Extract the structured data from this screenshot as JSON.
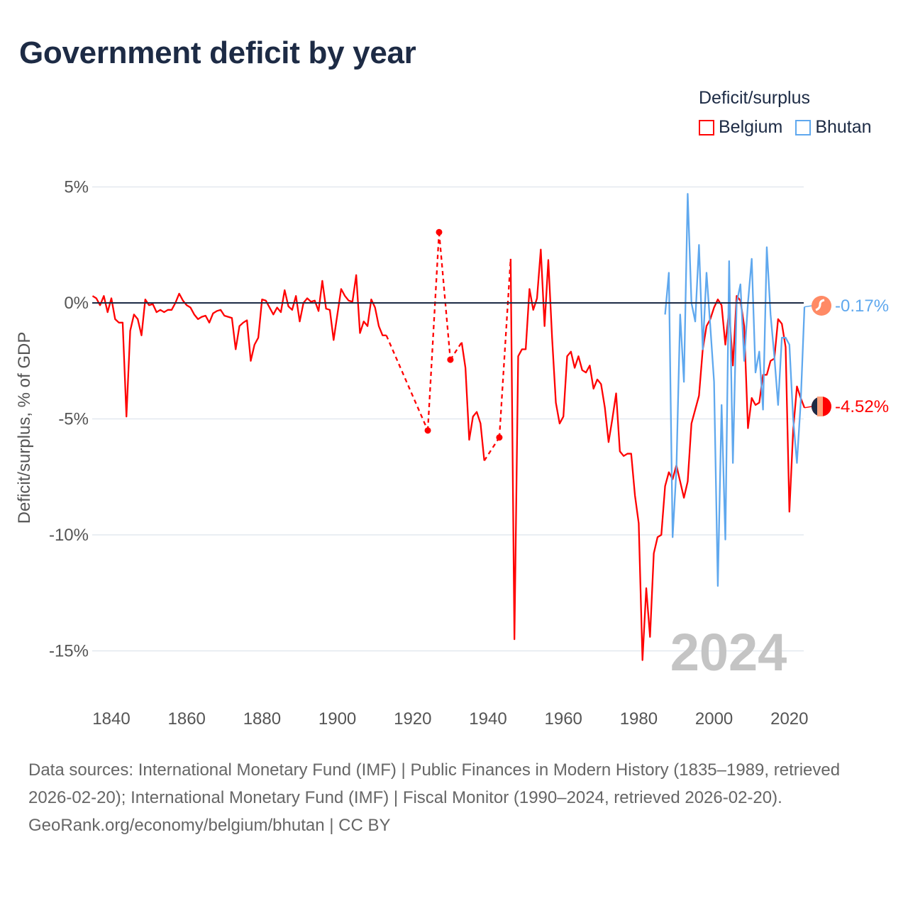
{
  "title": "Government deficit by year",
  "legend": {
    "title": "Deficit/surplus",
    "items": [
      {
        "name": "Belgium",
        "color": "#ff0000"
      },
      {
        "name": "Bhutan",
        "color": "#5fa8ee"
      }
    ]
  },
  "footer": {
    "sources": "Data sources: International Monetary Fund (IMF) | Public Finances in Modern History (1835–1989, retrieved 2026-02-20); International Monetary Fund (IMF) | Fiscal Monitor (1990–2024, retrieved 2026-02-20).",
    "credit": "GeoRank.org/economy/belgium/bhutan | CC BY"
  },
  "chart_data": {
    "type": "line",
    "title": "Government deficit by year",
    "xlabel": "",
    "ylabel": "Deficit/surplus, % of GDP",
    "xlim": [
      1835,
      2024
    ],
    "ylim": [
      -17,
      5.3
    ],
    "x_ticks": [
      1840,
      1860,
      1880,
      1900,
      1920,
      1940,
      1960,
      1980,
      2000,
      2020
    ],
    "y_ticks": [
      {
        "v": 5,
        "label": "5%"
      },
      {
        "v": 0,
        "label": "0%"
      },
      {
        "v": -5,
        "label": "-5%"
      },
      {
        "v": -10,
        "label": "-10%"
      },
      {
        "v": -15,
        "label": "-15%"
      }
    ],
    "year_watermark": "2024",
    "grid": true,
    "legend_position": "top-right",
    "series": [
      {
        "name": "Belgium",
        "color": "#ff0000",
        "end_label": "-4.52%",
        "points": [
          [
            1835,
            0.3
          ],
          [
            1836,
            0.2
          ],
          [
            1837,
            -0.1
          ],
          [
            1838,
            0.3
          ],
          [
            1839,
            -0.4
          ],
          [
            1840,
            0.2
          ],
          [
            1841,
            -0.7
          ],
          [
            1842,
            -0.85
          ],
          [
            1843,
            -0.85
          ],
          [
            1844,
            -4.9
          ],
          [
            1845,
            -1.2
          ],
          [
            1846,
            -0.5
          ],
          [
            1847,
            -0.7
          ],
          [
            1848,
            -1.4
          ],
          [
            1849,
            0.15
          ],
          [
            1850,
            -0.1
          ],
          [
            1851,
            -0.05
          ],
          [
            1852,
            -0.4
          ],
          [
            1853,
            -0.3
          ],
          [
            1854,
            -0.4
          ],
          [
            1855,
            -0.3
          ],
          [
            1856,
            -0.3
          ],
          [
            1857,
            0
          ],
          [
            1858,
            0.4
          ],
          [
            1859,
            0.1
          ],
          [
            1860,
            -0.1
          ],
          [
            1861,
            -0.2
          ],
          [
            1862,
            -0.5
          ],
          [
            1863,
            -0.7
          ],
          [
            1864,
            -0.6
          ],
          [
            1865,
            -0.55
          ],
          [
            1866,
            -0.85
          ],
          [
            1867,
            -0.45
          ],
          [
            1868,
            -0.35
          ],
          [
            1869,
            -0.3
          ],
          [
            1870,
            -0.55
          ],
          [
            1871,
            -0.6
          ],
          [
            1872,
            -0.65
          ],
          [
            1873,
            -2.0
          ],
          [
            1874,
            -1.0
          ],
          [
            1875,
            -0.85
          ],
          [
            1876,
            -0.75
          ],
          [
            1877,
            -2.5
          ],
          [
            1878,
            -1.8
          ],
          [
            1879,
            -1.5
          ],
          [
            1880,
            0.15
          ],
          [
            1881,
            0.1
          ],
          [
            1882,
            -0.2
          ],
          [
            1883,
            -0.5
          ],
          [
            1884,
            -0.2
          ],
          [
            1885,
            -0.4
          ],
          [
            1886,
            0.55
          ],
          [
            1887,
            -0.15
          ],
          [
            1888,
            -0.3
          ],
          [
            1889,
            0.3
          ],
          [
            1890,
            -0.8
          ],
          [
            1891,
            0.0
          ],
          [
            1892,
            0.2
          ],
          [
            1893,
            0.05
          ],
          [
            1894,
            0.1
          ],
          [
            1895,
            -0.35
          ],
          [
            1896,
            0.95
          ],
          [
            1897,
            -0.25
          ],
          [
            1898,
            -0.3
          ],
          [
            1899,
            -1.6
          ],
          [
            1900,
            -0.5
          ],
          [
            1901,
            0.6
          ],
          [
            1902,
            0.3
          ],
          [
            1903,
            0.1
          ],
          [
            1904,
            0.05
          ],
          [
            1905,
            1.2
          ],
          [
            1906,
            -1.3
          ],
          [
            1907,
            -0.8
          ],
          [
            1908,
            -1.0
          ],
          [
            1909,
            0.15
          ],
          [
            1910,
            -0.2
          ],
          [
            1911,
            -1.0
          ],
          [
            1912,
            -1.4
          ],
          [
            1913,
            -1.4
          ],
          [
            1924,
            -5.5
          ],
          [
            1927,
            3.05
          ],
          [
            1930,
            -2.45
          ],
          [
            1933,
            -1.7
          ],
          [
            1934,
            -2.8
          ],
          [
            1935,
            -5.9
          ],
          [
            1936,
            -4.9
          ],
          [
            1937,
            -4.7
          ],
          [
            1938,
            -5.2
          ],
          [
            1939,
            -6.8
          ],
          [
            1943,
            -5.8
          ],
          [
            1946,
            1.9
          ],
          [
            1947,
            -14.5
          ],
          [
            1948,
            -2.3
          ],
          [
            1949,
            -2.0
          ],
          [
            1950,
            -2.0
          ],
          [
            1951,
            0.6
          ],
          [
            1952,
            -0.3
          ],
          [
            1953,
            0.2
          ],
          [
            1954,
            2.3
          ],
          [
            1955,
            -1.0
          ],
          [
            1956,
            1.85
          ],
          [
            1957,
            -1.5
          ],
          [
            1958,
            -4.3
          ],
          [
            1959,
            -5.2
          ],
          [
            1960,
            -4.9
          ],
          [
            1961,
            -2.3
          ],
          [
            1962,
            -2.1
          ],
          [
            1963,
            -2.8
          ],
          [
            1964,
            -2.3
          ],
          [
            1965,
            -2.9
          ],
          [
            1966,
            -3.0
          ],
          [
            1967,
            -2.7
          ],
          [
            1968,
            -3.7
          ],
          [
            1969,
            -3.3
          ],
          [
            1970,
            -3.5
          ],
          [
            1971,
            -4.5
          ],
          [
            1972,
            -6.0
          ],
          [
            1973,
            -5.0
          ],
          [
            1974,
            -3.9
          ],
          [
            1975,
            -6.4
          ],
          [
            1976,
            -6.6
          ],
          [
            1977,
            -6.5
          ],
          [
            1978,
            -6.5
          ],
          [
            1979,
            -8.3
          ],
          [
            1980,
            -9.5
          ],
          [
            1981,
            -15.4
          ],
          [
            1982,
            -12.3
          ],
          [
            1983,
            -14.4
          ],
          [
            1984,
            -10.8
          ],
          [
            1985,
            -10.1
          ],
          [
            1986,
            -10.0
          ],
          [
            1987,
            -7.9
          ],
          [
            1988,
            -7.3
          ],
          [
            1989,
            -7.6
          ],
          [
            1990,
            -7.0
          ],
          [
            1991,
            -7.7
          ],
          [
            1992,
            -8.4
          ],
          [
            1993,
            -7.7
          ],
          [
            1994,
            -5.2
          ],
          [
            1995,
            -4.6
          ],
          [
            1996,
            -4.0
          ],
          [
            1997,
            -2.0
          ],
          [
            1998,
            -1.0
          ],
          [
            1999,
            -0.7
          ],
          [
            2000,
            -0.2
          ],
          [
            2001,
            0.15
          ],
          [
            2002,
            -0.1
          ],
          [
            2003,
            -1.8
          ],
          [
            2004,
            -0.3
          ],
          [
            2005,
            -2.7
          ],
          [
            2006,
            0.3
          ],
          [
            2007,
            0.1
          ],
          [
            2008,
            -1.0
          ],
          [
            2009,
            -5.4
          ],
          [
            2010,
            -4.1
          ],
          [
            2011,
            -4.4
          ],
          [
            2012,
            -4.3
          ],
          [
            2013,
            -3.1
          ],
          [
            2014,
            -3.1
          ],
          [
            2015,
            -2.5
          ],
          [
            2016,
            -2.4
          ],
          [
            2017,
            -0.7
          ],
          [
            2018,
            -0.9
          ],
          [
            2019,
            -1.9
          ],
          [
            2020,
            -9.0
          ],
          [
            2021,
            -5.5
          ],
          [
            2022,
            -3.6
          ],
          [
            2023,
            -4.1
          ],
          [
            2024,
            -4.52
          ]
        ]
      },
      {
        "name": "Bhutan",
        "color": "#5fa8ee",
        "end_label": "-0.17%",
        "points": [
          [
            1987,
            -0.5
          ],
          [
            1988,
            1.3
          ],
          [
            1989,
            -10.1
          ],
          [
            1990,
            -7.2
          ],
          [
            1991,
            -0.5
          ],
          [
            1992,
            -3.4
          ],
          [
            1993,
            4.7
          ],
          [
            1994,
            0
          ],
          [
            1995,
            -0.8
          ],
          [
            1996,
            2.5
          ],
          [
            1997,
            -2.0
          ],
          [
            1998,
            1.3
          ],
          [
            1999,
            -1.0
          ],
          [
            2000,
            -3.4
          ],
          [
            2001,
            -12.2
          ],
          [
            2002,
            -4.4
          ],
          [
            2003,
            -10.2
          ],
          [
            2004,
            1.8
          ],
          [
            2005,
            -6.9
          ],
          [
            2006,
            0
          ],
          [
            2007,
            0.8
          ],
          [
            2008,
            -2.5
          ],
          [
            2009,
            0
          ],
          [
            2010,
            1.9
          ],
          [
            2011,
            -3.0
          ],
          [
            2012,
            -2.1
          ],
          [
            2013,
            -4.6
          ],
          [
            2014,
            2.4
          ],
          [
            2015,
            -0.5
          ],
          [
            2016,
            -2.3
          ],
          [
            2017,
            -4.4
          ],
          [
            2018,
            -1.5
          ],
          [
            2019,
            -1.5
          ],
          [
            2020,
            -1.8
          ],
          [
            2021,
            -5.0
          ],
          [
            2022,
            -6.9
          ],
          [
            2023,
            -4.3
          ],
          [
            2024,
            -0.17
          ]
        ]
      }
    ]
  }
}
